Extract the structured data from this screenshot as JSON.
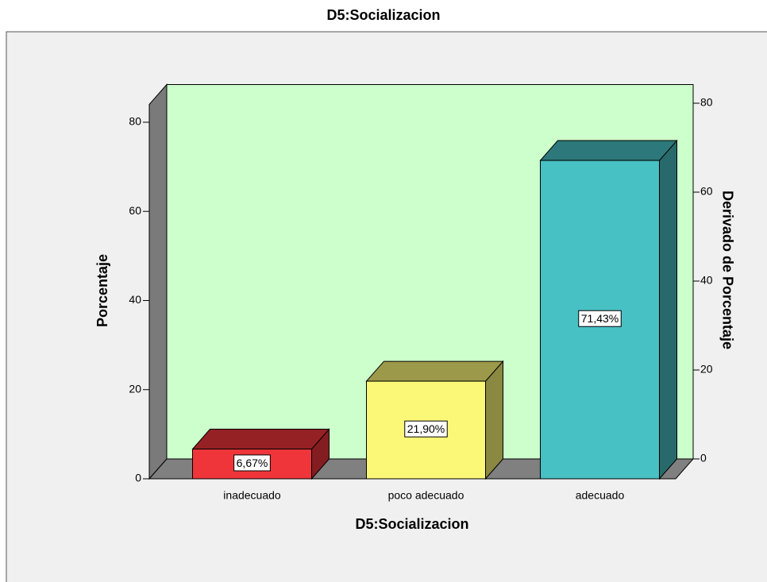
{
  "chart_data": {
    "type": "bar",
    "title": "D5:Socializacion",
    "categories": [
      "inadecuado",
      "poco adecuado",
      "adecuado"
    ],
    "values": [
      6.67,
      21.9,
      71.43
    ],
    "value_labels": [
      "6,67%",
      "21,90%",
      "71,43%"
    ],
    "colors": [
      "#f0353a",
      "#fbf877",
      "#48c1c4"
    ],
    "x_label": "D5:Socializacion",
    "y_label": "Porcentaje",
    "y2_label": "Derivado de Porcentaje",
    "ylim": [
      0,
      84
    ],
    "yticks": [
      0,
      20,
      40,
      60,
      80
    ],
    "y2lim": [
      0,
      80
    ],
    "y2ticks": [
      0,
      20,
      40,
      60,
      80
    ],
    "plot_background": "#ccffcc"
  }
}
